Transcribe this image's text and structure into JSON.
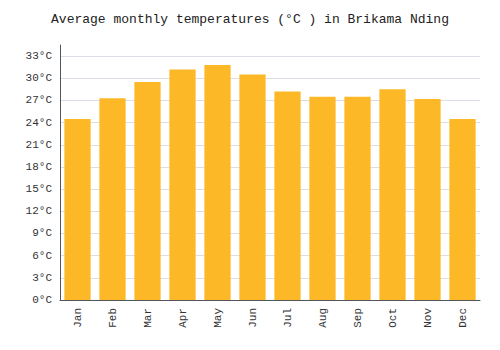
{
  "chart_data": {
    "type": "bar",
    "title": "Average monthly temperatures (°C ) in Brikama Nding",
    "categories": [
      "Jan",
      "Feb",
      "Mar",
      "Apr",
      "May",
      "Jun",
      "Jul",
      "Aug",
      "Sep",
      "Oct",
      "Nov",
      "Dec"
    ],
    "values": [
      24.5,
      27.3,
      29.5,
      31.2,
      31.8,
      30.5,
      28.2,
      27.5,
      27.5,
      28.5,
      27.2,
      24.5
    ],
    "color": "#FDB827",
    "ylim": [
      0,
      34.5
    ],
    "yticks": [
      {
        "value": 0,
        "label": "0°C"
      },
      {
        "value": 3,
        "label": "3°C"
      },
      {
        "value": 6,
        "label": "6°C"
      },
      {
        "value": 9,
        "label": "9°C"
      },
      {
        "value": 12,
        "label": "12°C"
      },
      {
        "value": 15,
        "label": "15°C"
      },
      {
        "value": 18,
        "label": "18°C"
      },
      {
        "value": 21,
        "label": "21°C"
      },
      {
        "value": 24,
        "label": "24°C"
      },
      {
        "value": 27,
        "label": "27°C"
      },
      {
        "value": 30,
        "label": "30°C"
      },
      {
        "value": 33,
        "label": "33°C"
      }
    ],
    "grid": true
  }
}
